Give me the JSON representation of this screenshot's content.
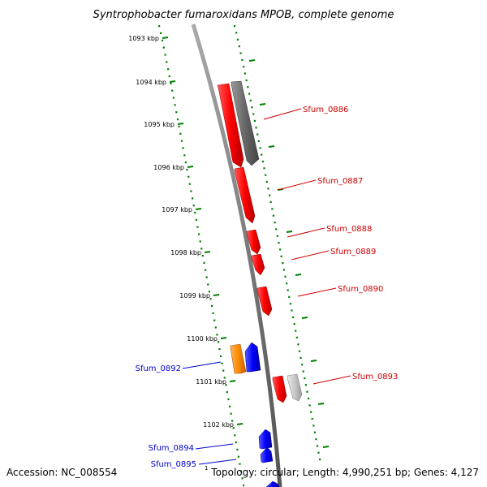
{
  "title": "Syntrophobacter fumaroxidans MPOB, complete genome",
  "accession": "Accession: NC_008554",
  "topology": "Topology: circular; Length: 4,990,251 bp; Genes: 4,127",
  "corner_marker": "1",
  "colors": {
    "forward": "#ff0000",
    "reverse": "#0000ff",
    "gray_dark": "#666666",
    "gray_light": "#c8c8c8",
    "orange": "#ff8c00",
    "tick_green": "#008000",
    "backbone": "#888888",
    "label_forward": "#cc0000",
    "label_reverse": "#0000cc"
  },
  "ticks": [
    "1093 kbp",
    "1094 kbp",
    "1095 kbp",
    "1096 kbp",
    "1097 kbp",
    "1098 kbp",
    "1099 kbp",
    "1100 kbp",
    "1101 kbp",
    "1102 kbp"
  ],
  "genes": [
    {
      "id": "sfum-0886-red",
      "color": "forward"
    },
    {
      "id": "sfum-0886-gray",
      "color": "gray_dark"
    },
    {
      "id": "sfum-0887",
      "color": "forward"
    },
    {
      "id": "sfum-0888",
      "color": "forward"
    },
    {
      "id": "sfum-0889",
      "color": "forward"
    },
    {
      "id": "sfum-0890",
      "color": "forward"
    },
    {
      "id": "sfum-0892-orange",
      "color": "orange"
    },
    {
      "id": "sfum-0892-blue",
      "color": "reverse"
    },
    {
      "id": "sfum-0893-red",
      "color": "forward"
    },
    {
      "id": "sfum-0893-gray",
      "color": "gray_light"
    },
    {
      "id": "sfum-0894",
      "color": "reverse"
    },
    {
      "id": "sfum-0895",
      "color": "reverse"
    },
    {
      "id": "bottom-gene",
      "color": "reverse"
    }
  ],
  "labels": [
    {
      "text": "Sfum_0886",
      "strand": "forward"
    },
    {
      "text": "Sfum_0887",
      "strand": "forward"
    },
    {
      "text": "Sfum_0888",
      "strand": "forward"
    },
    {
      "text": "Sfum_0889",
      "strand": "forward"
    },
    {
      "text": "Sfum_0890",
      "strand": "forward"
    },
    {
      "text": "Sfum_0892",
      "strand": "reverse"
    },
    {
      "text": "Sfum_0893",
      "strand": "forward"
    },
    {
      "text": "Sfum_0894",
      "strand": "reverse"
    },
    {
      "text": "Sfum_0895",
      "strand": "reverse"
    }
  ]
}
